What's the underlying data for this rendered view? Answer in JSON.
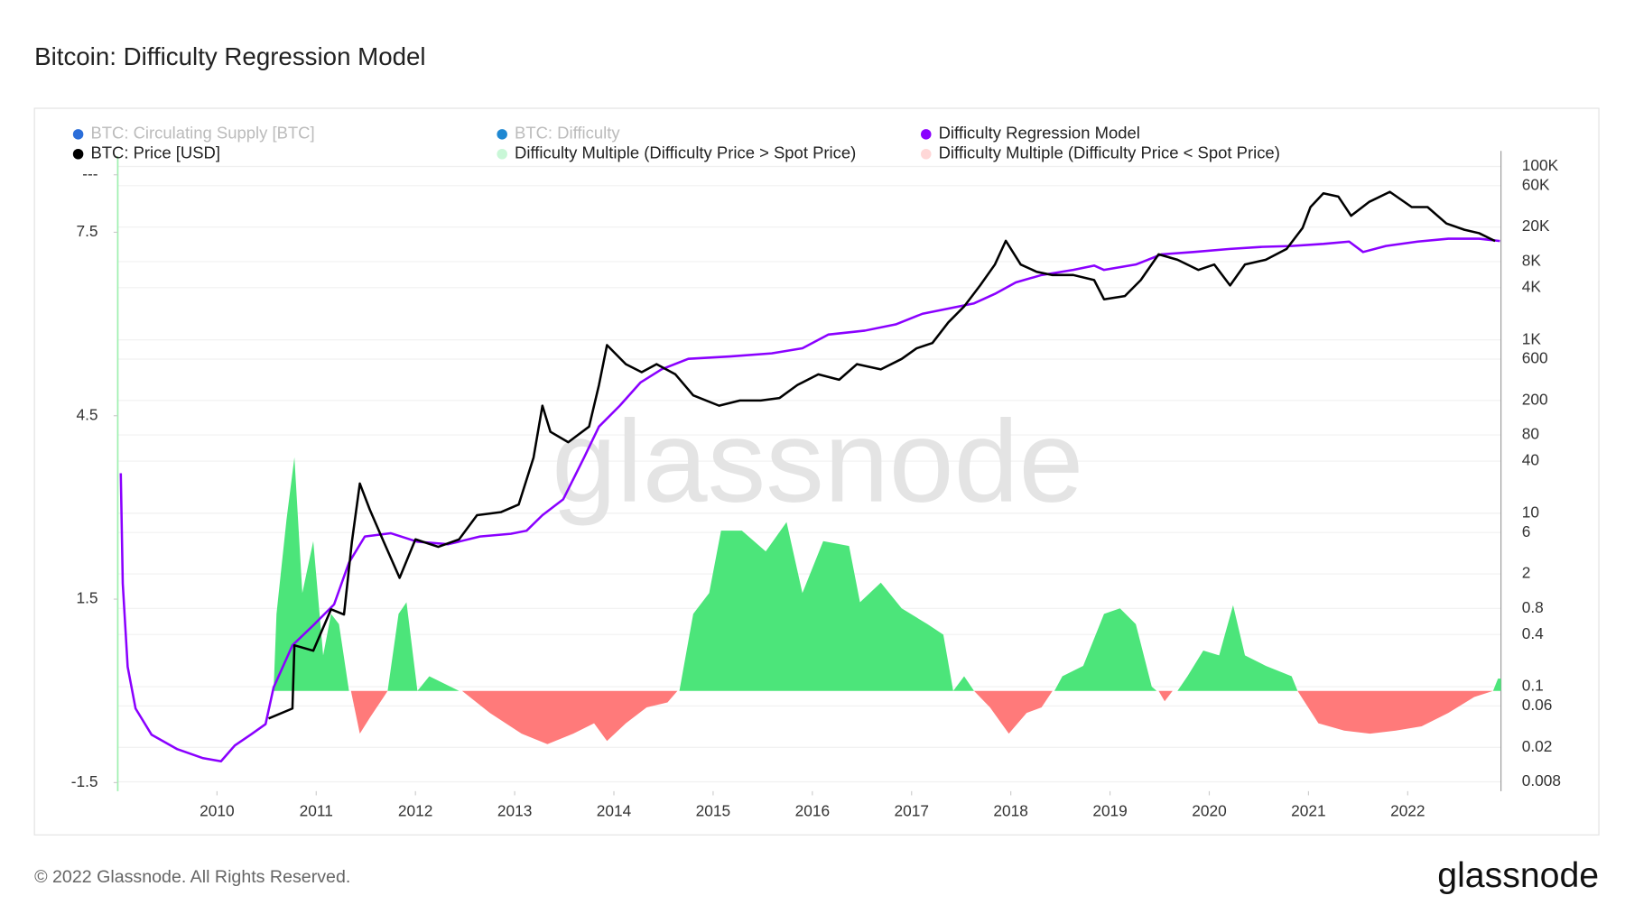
{
  "chart_data": {
    "type": "line",
    "title": "Bitcoin: Difficulty Regression Model",
    "footer": "© 2022 Glassnode. All Rights Reserved.",
    "brand": "glassnode",
    "watermark": "glassnode",
    "xlim": [
      2009.0,
      2022.94
    ],
    "xticks": [
      2010,
      2011,
      2012,
      2013,
      2014,
      2015,
      2016,
      2017,
      2018,
      2019,
      2020,
      2021,
      2022
    ],
    "ylim": [
      -1.64,
      8.83
    ],
    "yticks": [
      -1.5,
      1.5,
      4.5,
      7.5,
      {
        "value": 8.44,
        "label": "---"
      }
    ],
    "y2lim": [
      0.00624,
      151000
    ],
    "y2scale": "log",
    "y2ticks": [
      {
        "value": 100000,
        "label": "100K"
      },
      {
        "value": 60000,
        "label": "60K"
      },
      {
        "value": 20000,
        "label": "20K"
      },
      {
        "value": 8000,
        "label": "8K"
      },
      {
        "value": 4000,
        "label": "4K"
      },
      {
        "value": 1000,
        "label": "1K"
      },
      600,
      200,
      80,
      40,
      10,
      6,
      2,
      0.8,
      0.4,
      0.1,
      0.06,
      0.02,
      0.008
    ],
    "grid": true,
    "series": [
      {
        "name": "BTC: Circulating Supply [BTC]",
        "color": "#2b6ed9",
        "visible": false
      },
      {
        "name": "BTC: Difficulty",
        "color": "#1f88d2",
        "visible": false
      },
      {
        "name": "Difficulty Regression Model",
        "color": "#8a00ff",
        "axis": "y2",
        "type": "line",
        "x": [
          2009.03,
          2009.05,
          2009.1,
          2009.18,
          2009.34,
          2009.6,
          2009.86,
          2010.04,
          2010.18,
          2010.34,
          2010.49,
          2010.57,
          2010.76,
          2010.97,
          2011.18,
          2011.33,
          2011.49,
          2011.75,
          2012.02,
          2012.33,
          2012.65,
          2012.96,
          2013.12,
          2013.28,
          2013.49,
          2013.7,
          2013.85,
          2014.06,
          2014.27,
          2014.48,
          2014.75,
          2015.17,
          2015.59,
          2015.9,
          2016.16,
          2016.53,
          2016.84,
          2017.11,
          2017.37,
          2017.63,
          2017.84,
          2018.05,
          2018.31,
          2018.63,
          2018.84,
          2018.94,
          2019.26,
          2019.52,
          2019.84,
          2020.21,
          2020.52,
          2020.83,
          2021.15,
          2021.41,
          2021.55,
          2021.78,
          2022.1,
          2022.41,
          2022.72,
          2022.93
        ],
        "values": [
          29,
          1.55,
          0.17,
          0.056,
          0.028,
          0.019,
          0.015,
          0.0138,
          0.021,
          0.028,
          0.037,
          0.098,
          0.3,
          0.51,
          0.89,
          2.7,
          5.4,
          5.9,
          4.7,
          4.4,
          5.4,
          5.8,
          6.3,
          9.5,
          14.5,
          44,
          100,
          174,
          324,
          457,
          605,
          645,
          700,
          800,
          1150,
          1280,
          1510,
          2000,
          2300,
          2640,
          3390,
          4600,
          5600,
          6400,
          7200,
          6400,
          7400,
          9700,
          10300,
          11200,
          11800,
          12100,
          12800,
          13600,
          10300,
          12100,
          13600,
          14700,
          14700,
          13800
        ]
      },
      {
        "name": "BTC: Price [USD]",
        "color": "#000000",
        "axis": "y2",
        "type": "line",
        "x": [
          2010.52,
          2010.76,
          2010.78,
          2010.97,
          2011.15,
          2011.28,
          2011.36,
          2011.44,
          2011.54,
          2011.68,
          2011.84,
          2012.0,
          2012.23,
          2012.44,
          2012.62,
          2012.86,
          2013.04,
          2013.19,
          2013.28,
          2013.36,
          2013.54,
          2013.75,
          2013.85,
          2013.93,
          2014.12,
          2014.28,
          2014.43,
          2014.62,
          2014.8,
          2015.06,
          2015.27,
          2015.48,
          2015.67,
          2015.85,
          2016.06,
          2016.27,
          2016.45,
          2016.69,
          2016.9,
          2017.05,
          2017.21,
          2017.37,
          2017.53,
          2017.69,
          2017.84,
          2017.95,
          2018.1,
          2018.26,
          2018.42,
          2018.63,
          2018.84,
          2018.94,
          2019.15,
          2019.31,
          2019.49,
          2019.68,
          2019.89,
          2020.05,
          2020.21,
          2020.36,
          2020.57,
          2020.78,
          2020.94,
          2021.02,
          2021.15,
          2021.3,
          2021.43,
          2021.61,
          2021.82,
          2022.04,
          2022.2,
          2022.39,
          2022.57,
          2022.72,
          2022.88
        ],
        "values": [
          0.043,
          0.056,
          0.3,
          0.26,
          0.78,
          0.68,
          4.7,
          22,
          11,
          4.7,
          1.8,
          5,
          4.1,
          5,
          9.5,
          10.3,
          12.6,
          44,
          174,
          87,
          66,
          100,
          302,
          870,
          525,
          424,
          525,
          400,
          229,
          174,
          200,
          200,
          214,
          302,
          400,
          347,
          525,
          457,
          603,
          800,
          920,
          1590,
          2430,
          4240,
          7400,
          13900,
          7400,
          6100,
          5600,
          5600,
          4900,
          2940,
          3200,
          4900,
          9700,
          8400,
          6400,
          7400,
          4240,
          7400,
          8400,
          11200,
          19500,
          34000,
          49000,
          45000,
          27000,
          39000,
          51000,
          34000,
          34000,
          22000,
          18600,
          17000,
          13800
        ]
      },
      {
        "name": "Difficulty Multiple (Difficulty Price > Spot Price)",
        "color": "#4ce57a",
        "type": "area",
        "x": [
          2010.57,
          2010.6,
          2010.7,
          2010.78,
          2010.86,
          2010.97,
          2011.07,
          2011.15,
          2011.23,
          2011.33,
          2011.72,
          2011.83,
          2011.91,
          2012.02,
          2012.14,
          2012.44,
          2014.66,
          2014.8,
          2014.96,
          2015.08,
          2015.29,
          2015.53,
          2015.74,
          2015.9,
          2016.11,
          2016.37,
          2016.48,
          2016.69,
          2016.9,
          2017.16,
          2017.32,
          2017.42,
          2017.53,
          2017.63,
          2018.44,
          2018.52,
          2018.73,
          2018.94,
          2019.1,
          2019.26,
          2019.42,
          2019.47,
          2019.68,
          2019.78,
          2019.94,
          2020.1,
          2020.24,
          2020.36,
          2020.57,
          2020.83,
          2020.89,
          2022.86,
          2022.91,
          2022.94
        ],
        "values": [
          0,
          1.26,
          2.8,
          3.82,
          1.6,
          2.45,
          0.58,
          1.26,
          1.09,
          0,
          0,
          1.26,
          1.45,
          0,
          0.24,
          0,
          0,
          1.26,
          1.6,
          2.62,
          2.62,
          2.28,
          2.76,
          1.6,
          2.45,
          2.37,
          1.45,
          1.77,
          1.35,
          1.09,
          0.92,
          0,
          0.24,
          0,
          0,
          0.24,
          0.41,
          1.26,
          1.35,
          1.09,
          0.07,
          0,
          0,
          0.24,
          0.66,
          0.58,
          1.4,
          0.58,
          0.41,
          0.24,
          0,
          0,
          0.2,
          0.2
        ]
      },
      {
        "name": "Difficulty Multiple (Difficulty Price < Spot Price)",
        "color": "#ff7a7a",
        "type": "area",
        "x": [
          2011.35,
          2011.44,
          2011.54,
          2011.68,
          2011.72,
          2012.47,
          2012.75,
          2013.07,
          2013.33,
          2013.59,
          2013.8,
          2013.93,
          2014.12,
          2014.33,
          2014.54,
          2014.64,
          2017.63,
          2017.79,
          2017.98,
          2018.16,
          2018.31,
          2018.42,
          2019.49,
          2019.55,
          2019.63,
          2020.89,
          2021.1,
          2021.36,
          2021.62,
          2021.88,
          2022.14,
          2022.41,
          2022.67,
          2022.86
        ],
        "values": [
          0,
          -0.7,
          -0.44,
          -0.1,
          0,
          0,
          -0.36,
          -0.7,
          -0.87,
          -0.7,
          -0.53,
          -0.82,
          -0.53,
          -0.27,
          -0.19,
          0,
          0,
          -0.27,
          -0.7,
          -0.36,
          -0.27,
          0,
          0,
          -0.17,
          0,
          0,
          -0.53,
          -0.65,
          -0.7,
          -0.65,
          -0.58,
          -0.36,
          -0.1,
          0
        ]
      }
    ]
  }
}
